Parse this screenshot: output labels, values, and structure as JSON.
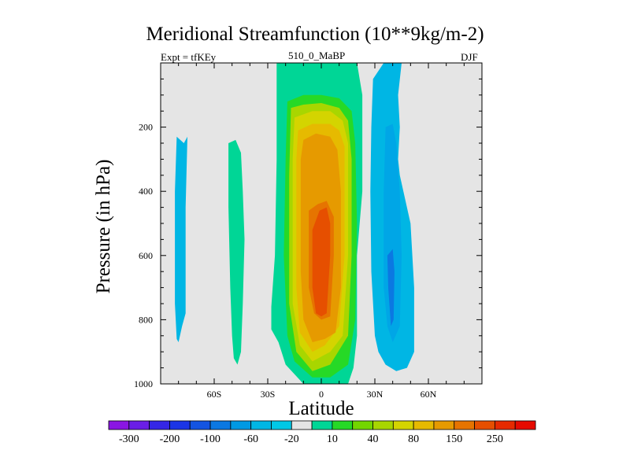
{
  "chart_data": {
    "type": "contour",
    "title": "Meridional Streamfunction (10**9kg/m-2)",
    "left_string": "Expt = tfKEy",
    "center_string": "510_0_MaBP",
    "right_string": "DJF",
    "xlabel": "Latitude",
    "ylabel": "Pressure (in hPa)",
    "xlim": [
      -90,
      90
    ],
    "ylim": [
      1000,
      0
    ],
    "x_ticks": [
      {
        "value": -60,
        "label": "60S"
      },
      {
        "value": -30,
        "label": "30S"
      },
      {
        "value": 0,
        "label": "0"
      },
      {
        "value": 30,
        "label": "30N"
      },
      {
        "value": 60,
        "label": "60N"
      }
    ],
    "y_ticks": [
      {
        "value": 200,
        "label": "200"
      },
      {
        "value": 400,
        "label": "400"
      },
      {
        "value": 600,
        "label": "600"
      },
      {
        "value": 800,
        "label": "800"
      },
      {
        "value": 1000,
        "label": "1000"
      }
    ],
    "missing_color": "#e5e5e5",
    "colorbar": {
      "colors": [
        "#8a16e3",
        "#6a1ee6",
        "#3526e6",
        "#1b35e6",
        "#1454e2",
        "#0b78e2",
        "#0099e4",
        "#00b6e4",
        "#00c8e6",
        "#e4e4e4",
        "#00d696",
        "#26d926",
        "#73d600",
        "#a8d600",
        "#d4d400",
        "#e6ba00",
        "#e69a00",
        "#e67400",
        "#e64f00",
        "#e62a00",
        "#e60a00"
      ],
      "labels": [
        {
          "after_box": 0,
          "text": "-300"
        },
        {
          "after_box": 2,
          "text": "-200"
        },
        {
          "after_box": 4,
          "text": "-100"
        },
        {
          "after_box": 6,
          "text": "-60"
        },
        {
          "after_box": 8,
          "text": "-20"
        },
        {
          "after_box": 10,
          "text": "10"
        },
        {
          "after_box": 12,
          "text": "40"
        },
        {
          "after_box": 14,
          "text": "80"
        },
        {
          "after_box": 16,
          "text": "150"
        },
        {
          "after_box": 18,
          "text": "250"
        }
      ]
    },
    "features": [
      {
        "name": "cell-60S",
        "level": -20,
        "color": "#00b6e4",
        "lat": [
          -81,
          -77,
          -75,
          -76,
          -76,
          -78,
          -80,
          -81,
          -82,
          -82
        ],
        "pres": [
          230,
          250,
          230,
          450,
          780,
          820,
          870,
          860,
          750,
          400
        ]
      },
      {
        "name": "cell-45S",
        "level": 10,
        "color": "#00d696",
        "lat": [
          -52,
          -48,
          -45,
          -44,
          -43,
          -44,
          -45,
          -47,
          -49,
          -50,
          -51,
          -52
        ],
        "pres": [
          250,
          240,
          280,
          400,
          550,
          750,
          900,
          940,
          920,
          850,
          700,
          450
        ]
      },
      {
        "name": "hadley-outer",
        "level": 10,
        "color": "#00d696",
        "lat": [
          -25,
          -10,
          5,
          20,
          23,
          23,
          20,
          20,
          18,
          15,
          5,
          -10,
          -20,
          -24,
          -28,
          -28,
          -26,
          -25,
          -25
        ],
        "pres": [
          0,
          0,
          0,
          0,
          100,
          400,
          600,
          850,
          950,
          1000,
          1000,
          1000,
          940,
          870,
          830,
          760,
          600,
          300,
          100
        ]
      },
      {
        "name": "hadley-40",
        "level": 40,
        "color": "#26d926",
        "lat": [
          -19,
          -10,
          0,
          10,
          17,
          19,
          20,
          19,
          15,
          5,
          -5,
          -15,
          -19,
          -21,
          -20
        ],
        "pres": [
          120,
          100,
          100,
          110,
          150,
          250,
          500,
          800,
          940,
          980,
          980,
          930,
          850,
          600,
          300
        ]
      },
      {
        "name": "hadley-80",
        "level": 80,
        "color": "#a8d600",
        "lat": [
          -17,
          -10,
          0,
          10,
          15,
          17,
          17,
          15,
          5,
          -5,
          -14,
          -18,
          -18
        ],
        "pres": [
          140,
          130,
          125,
          140,
          180,
          300,
          600,
          850,
          940,
          960,
          900,
          750,
          350
        ]
      },
      {
        "name": "hadley-100",
        "level": 100,
        "color": "#d4d400",
        "lat": [
          -15,
          -5,
          5,
          12,
          15,
          15,
          12,
          5,
          -5,
          -12,
          -16,
          -16
        ],
        "pres": [
          170,
          150,
          150,
          180,
          250,
          600,
          850,
          900,
          930,
          880,
          750,
          300
        ]
      },
      {
        "name": "hadley-150",
        "level": 150,
        "color": "#e6ba00",
        "lat": [
          -13,
          -5,
          5,
          10,
          13,
          13,
          10,
          2,
          -5,
          -12,
          -14,
          -14
        ],
        "pres": [
          210,
          190,
          190,
          210,
          260,
          600,
          820,
          880,
          900,
          840,
          700,
          300
        ]
      },
      {
        "name": "hadley-200",
        "level": 200,
        "color": "#e69a00",
        "lat": [
          -10,
          -3,
          5,
          9,
          11,
          11,
          8,
          2,
          -5,
          -10,
          -11.5,
          -11.5
        ],
        "pres": [
          240,
          220,
          230,
          270,
          400,
          700,
          840,
          860,
          870,
          800,
          650,
          300
        ]
      },
      {
        "name": "hadley-250",
        "level": 250,
        "color": "#e67400",
        "lat": [
          -7,
          -2,
          3,
          7,
          7,
          5,
          0,
          -4,
          -7,
          -7
        ],
        "pres": [
          460,
          440,
          430,
          480,
          600,
          790,
          800,
          780,
          700,
          550
        ]
      },
      {
        "name": "hadley-core",
        "level": 300,
        "color": "#e64f00",
        "lat": [
          -5,
          -1,
          3,
          5,
          5,
          3,
          0,
          -3,
          -5,
          -5
        ],
        "pres": [
          520,
          460,
          450,
          500,
          600,
          780,
          790,
          780,
          700,
          600
        ]
      },
      {
        "name": "ferrel-outer",
        "level": -20,
        "color": "#00b6e4",
        "lat": [
          29,
          35,
          40,
          45,
          43,
          44,
          43,
          44,
          50,
          52,
          52,
          48,
          42,
          36,
          32,
          30,
          28,
          27.5,
          28
        ],
        "pres": [
          50,
          0,
          0,
          0,
          100,
          200,
          300,
          350,
          500,
          700,
          900,
          950,
          960,
          940,
          900,
          850,
          650,
          400,
          200
        ]
      },
      {
        "name": "ferrel-inner",
        "level": -60,
        "color": "#00a6e6",
        "lat": [
          36,
          40,
          42,
          44,
          45,
          44,
          40,
          37,
          35,
          35
        ],
        "pres": [
          200,
          190,
          250,
          400,
          600,
          820,
          870,
          820,
          700,
          400
        ]
      },
      {
        "name": "ferrel-core",
        "level": -100,
        "color": "#0b78e2",
        "lat": [
          37,
          40,
          41,
          40.5,
          39,
          37.5
        ],
        "pres": [
          600,
          580,
          650,
          800,
          820,
          700
        ]
      }
    ]
  }
}
